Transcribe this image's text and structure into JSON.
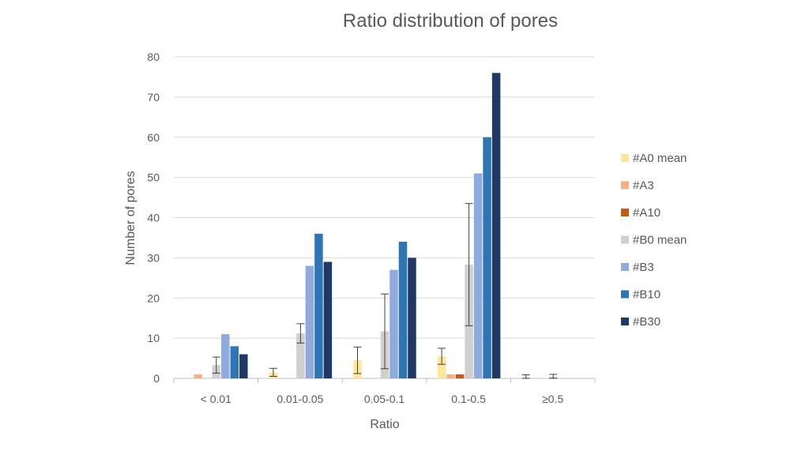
{
  "chart_data": {
    "type": "bar",
    "title": "Ratio distribution of pores",
    "xlabel": "Ratio",
    "ylabel": "Number of pores",
    "ylim": [
      0,
      80
    ],
    "yticks": [
      0,
      10,
      20,
      30,
      40,
      50,
      60,
      70,
      80
    ],
    "grid": true,
    "legend_position": "right",
    "categories": [
      "< 0.01",
      "0.01-0.05",
      "0.05-0.1",
      "0.1-0.5",
      "≥0.5"
    ],
    "series": [
      {
        "name": "#A0 mean",
        "color": "#FFE699",
        "values": [
          0,
          1.5,
          4.5,
          5.5,
          0.3
        ],
        "error": [
          0,
          1,
          3.3,
          2,
          0.6
        ]
      },
      {
        "name": "#A3",
        "color": "#F4B183",
        "values": [
          1,
          0,
          0,
          1,
          0
        ],
        "error": null
      },
      {
        "name": "#A10",
        "color": "#C55A11",
        "values": [
          0,
          0,
          0,
          1,
          0
        ],
        "error": null
      },
      {
        "name": "#B0 mean",
        "color": "#D0D0D0",
        "values": [
          3.3,
          11.2,
          11.7,
          28.3,
          0.4
        ],
        "error": [
          2,
          2.4,
          9.3,
          15.2,
          0.6
        ]
      },
      {
        "name": "#B3",
        "color": "#8FAADC",
        "values": [
          11,
          28,
          27,
          51,
          0
        ],
        "error": null
      },
      {
        "name": "#B10",
        "color": "#2E75B6",
        "values": [
          8,
          36,
          34,
          60,
          0
        ],
        "error": null
      },
      {
        "name": "#B30",
        "color": "#203864",
        "values": [
          6,
          29,
          30,
          76,
          0
        ],
        "error": null
      }
    ]
  }
}
